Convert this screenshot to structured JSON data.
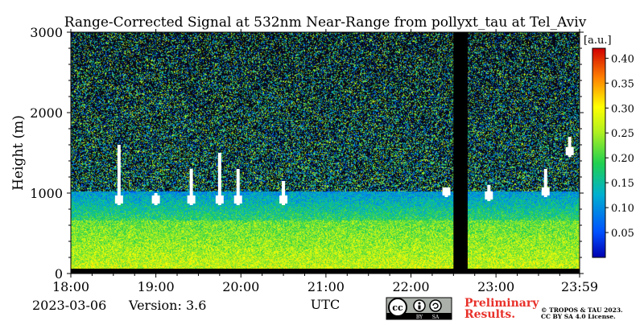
{
  "chart_data": {
    "type": "heatmap",
    "title": "Range-Corrected Signal at 532nm Near-Range from pollyxt_tau at Tel_Aviv",
    "xlabel": "UTC",
    "ylabel": "Height (m)",
    "x_ticks": [
      "18:00",
      "19:00",
      "20:00",
      "21:00",
      "22:00",
      "23:00",
      "23:59"
    ],
    "x_range": [
      "18:00",
      "23:59"
    ],
    "y_ticks": [
      "0",
      "1000",
      "2000",
      "3000"
    ],
    "ylim": [
      0,
      3000
    ],
    "colorbar": {
      "unit": "[a.u.]",
      "ticks": [
        "0.05",
        "0.10",
        "0.15",
        "0.20",
        "0.25",
        "0.30",
        "0.35",
        "0.40"
      ],
      "range": [
        0.0,
        0.42
      ],
      "colormap": "jet"
    },
    "data_gap": {
      "start": "22:30",
      "end": "22:40"
    },
    "cloud_layers": [
      {
        "time": "18:34",
        "base_m": 850,
        "top_m": 1600
      },
      {
        "time": "19:00",
        "base_m": 850,
        "top_m": 1000
      },
      {
        "time": "19:25",
        "base_m": 850,
        "top_m": 1300
      },
      {
        "time": "19:45",
        "base_m": 850,
        "top_m": 1500
      },
      {
        "time": "19:58",
        "base_m": 850,
        "top_m": 1300
      },
      {
        "time": "20:30",
        "base_m": 850,
        "top_m": 1150
      },
      {
        "time": "22:25",
        "base_m": 950,
        "top_m": 1050
      },
      {
        "time": "22:55",
        "base_m": 900,
        "top_m": 1100
      },
      {
        "time": "23:35",
        "base_m": 950,
        "top_m": 1300
      },
      {
        "time": "23:52",
        "base_m": 1450,
        "top_m": 1700
      }
    ]
  },
  "footer": {
    "date": "2023-03-06",
    "version": "Version: 3.6",
    "license_badge": [
      "cc",
      "BY",
      "SA"
    ],
    "preliminary_line1": "Preliminary",
    "preliminary_line2": "Results.",
    "copyright_line1": "© TROPOS & TAU 2023.",
    "copyright_line2": "CC BY SA 4.0 License."
  },
  "colors": {
    "preliminary": "#e8312a",
    "gap": "#000000",
    "ground_band": "#000000"
  }
}
